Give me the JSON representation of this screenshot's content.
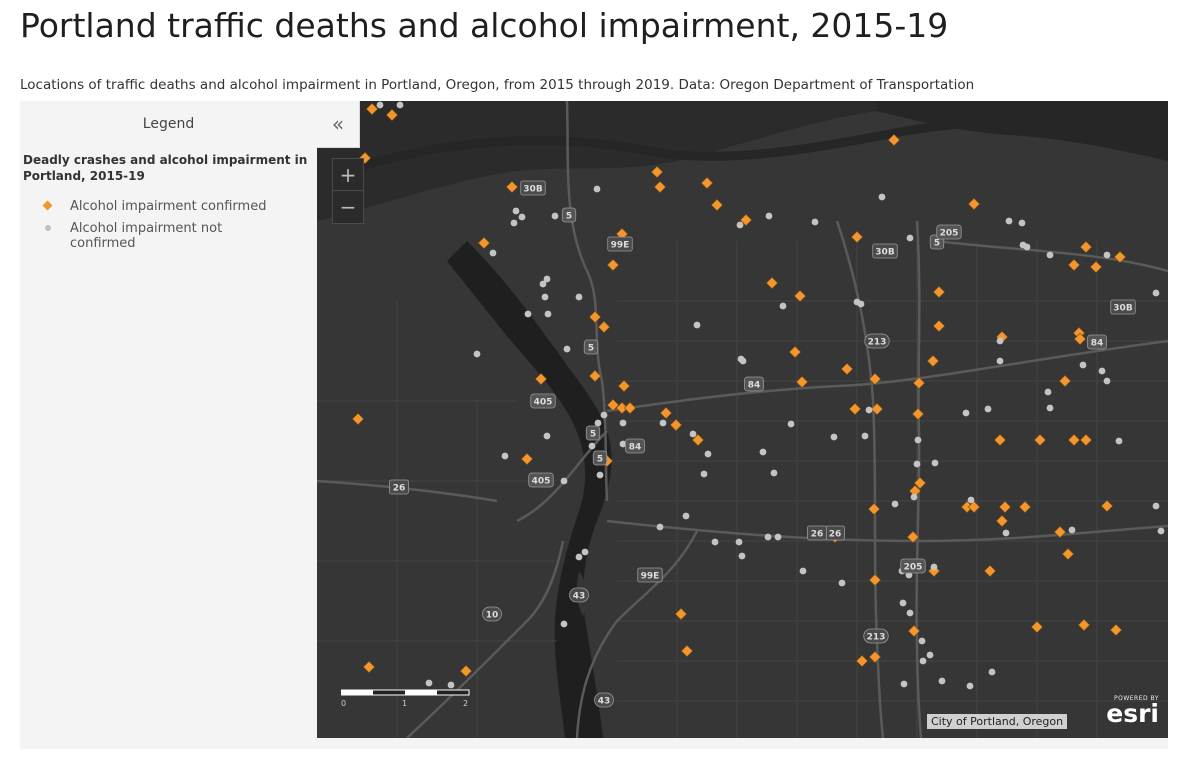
{
  "header": {
    "title": "Portland traffic deaths and alcohol impairment, 2015-19",
    "subtitle": "Locations of traffic deaths and alcohol impairment in Portland, Oregon, from 2015 through 2019. Data: Oregon Department of Transportation"
  },
  "legend": {
    "title": "Legend",
    "layer_title": "Deadly crashes and alcohol impairment in Portland, 2015-19",
    "items": [
      {
        "label": "Alcohol impairment confirmed",
        "symbol": "orange-diamond",
        "color": "#f2962e"
      },
      {
        "label": "Alcohol impairment not confirmed",
        "symbol": "gray-dot",
        "color": "#bfbfbf"
      }
    ]
  },
  "map": {
    "collapse_icon": "«",
    "zoom_in": "+",
    "zoom_out": "−",
    "scale_labels": [
      "0",
      "1",
      "2"
    ],
    "attribution": "City of Portland, Oregon",
    "powered_by": "POWERED BY",
    "logo_text": "esri",
    "basemap_color": "#363636",
    "shields": [
      {
        "label": "5",
        "type": "interstate"
      },
      {
        "label": "5",
        "type": "interstate"
      },
      {
        "label": "5",
        "type": "interstate"
      },
      {
        "label": "5",
        "type": "interstate"
      },
      {
        "label": "5",
        "type": "interstate"
      },
      {
        "label": "84",
        "type": "interstate"
      },
      {
        "label": "84",
        "type": "interstate"
      },
      {
        "label": "84",
        "type": "interstate"
      },
      {
        "label": "405",
        "type": "interstate"
      },
      {
        "label": "405",
        "type": "interstate"
      },
      {
        "label": "205",
        "type": "interstate"
      },
      {
        "label": "205",
        "type": "interstate"
      },
      {
        "label": "99E",
        "type": "us"
      },
      {
        "label": "99E",
        "type": "us"
      },
      {
        "label": "30B",
        "type": "us"
      },
      {
        "label": "30B",
        "type": "us"
      },
      {
        "label": "30B",
        "type": "us"
      },
      {
        "label": "213",
        "type": "state"
      },
      {
        "label": "213",
        "type": "state"
      },
      {
        "label": "26",
        "type": "us"
      },
      {
        "label": "26",
        "type": "us"
      },
      {
        "label": "43",
        "type": "state"
      },
      {
        "label": "43",
        "type": "state"
      },
      {
        "label": "10",
        "type": "state"
      },
      {
        "label": "26",
        "type": "us"
      }
    ]
  }
}
